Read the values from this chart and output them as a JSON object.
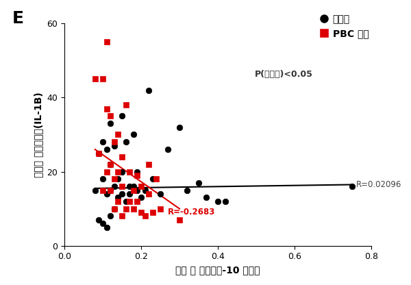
{
  "title_label": "E",
  "xlabel": "혁청 내 카스파제-10 활성도",
  "ylabel": "염증성 사이토카인(IL-1B)",
  "xlim": [
    0.0,
    0.8
  ],
  "ylim": [
    0,
    60
  ],
  "xticks": [
    0.0,
    0.2,
    0.4,
    0.6,
    0.8
  ],
  "yticks": [
    0,
    20,
    40,
    60
  ],
  "legend_label1": "일반인",
  "legend_label2": "PBC 환자",
  "p_value_text": "P(유의도)<0.05",
  "r_black_text": "R=0.02096",
  "r_red_text": "R=-0.2683",
  "black_x": [
    0.08,
    0.09,
    0.09,
    0.1,
    0.1,
    0.1,
    0.11,
    0.11,
    0.11,
    0.12,
    0.12,
    0.12,
    0.12,
    0.13,
    0.13,
    0.13,
    0.14,
    0.14,
    0.15,
    0.15,
    0.15,
    0.16,
    0.16,
    0.17,
    0.17,
    0.18,
    0.18,
    0.19,
    0.19,
    0.2,
    0.21,
    0.22,
    0.23,
    0.25,
    0.27,
    0.3,
    0.32,
    0.35,
    0.37,
    0.4,
    0.42,
    0.75
  ],
  "black_y": [
    15,
    7,
    25,
    6,
    18,
    28,
    5,
    14,
    26,
    8,
    15,
    22,
    33,
    10,
    16,
    27,
    13,
    18,
    14,
    20,
    35,
    12,
    28,
    14,
    16,
    16,
    30,
    15,
    20,
    13,
    15,
    42,
    18,
    14,
    26,
    32,
    15,
    17,
    13,
    12,
    12,
    16
  ],
  "red_x": [
    0.08,
    0.09,
    0.1,
    0.1,
    0.11,
    0.11,
    0.11,
    0.12,
    0.12,
    0.12,
    0.13,
    0.13,
    0.13,
    0.14,
    0.14,
    0.14,
    0.15,
    0.15,
    0.15,
    0.16,
    0.16,
    0.17,
    0.17,
    0.18,
    0.18,
    0.19,
    0.19,
    0.2,
    0.2,
    0.21,
    0.22,
    0.22,
    0.23,
    0.24,
    0.25,
    0.3
  ],
  "red_y": [
    45,
    25,
    15,
    45,
    20,
    37,
    55,
    15,
    22,
    35,
    10,
    18,
    28,
    12,
    20,
    30,
    8,
    16,
    24,
    10,
    38,
    12,
    20,
    10,
    15,
    12,
    19,
    9,
    16,
    8,
    14,
    22,
    9,
    18,
    10,
    7
  ],
  "black_trend_x": [
    0.08,
    0.75
  ],
  "black_trend_y": [
    15.5,
    16.5
  ],
  "red_trend_x": [
    0.08,
    0.3
  ],
  "red_trend_y": [
    26,
    10
  ],
  "bg_color": "#ffffff",
  "black_dot_color": "#000000",
  "red_square_color": "#dd0000",
  "trend_black_color": "#000000",
  "trend_red_color": "#dd0000"
}
